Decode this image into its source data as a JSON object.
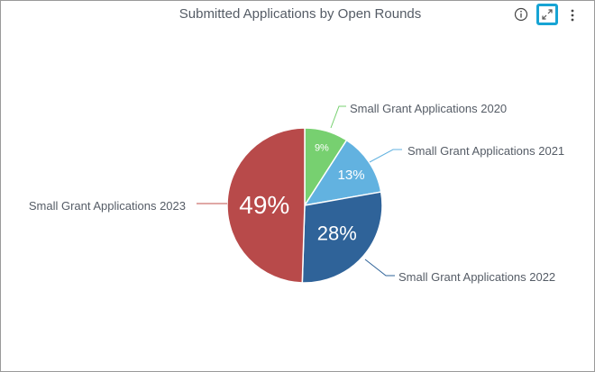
{
  "panel": {
    "title": "Submitted Applications by Open Rounds",
    "icons": {
      "info": "info-icon",
      "expand": "expand-icon",
      "more": "more-vertical-icon"
    }
  },
  "chart_data": {
    "type": "pie",
    "title": "Submitted Applications by Open Rounds",
    "slices": [
      {
        "label": "Small Grant Applications 2020",
        "value": 9,
        "display": "9%",
        "color": "#77d070",
        "line_color": "#77d070"
      },
      {
        "label": "Small Grant Applications 2021",
        "value": 13,
        "display": "13%",
        "color": "#62b2e0",
        "line_color": "#62b2e0"
      },
      {
        "label": "Small Grant Applications 2022",
        "value": 28,
        "display": "28%",
        "color": "#2f6399",
        "line_color": "#2f6399"
      },
      {
        "label": "Small Grant Applications 2023",
        "value": 49,
        "display": "49%",
        "color": "#b84a4a",
        "line_color": "#c0504d"
      }
    ],
    "legend": "labels on leader lines"
  }
}
